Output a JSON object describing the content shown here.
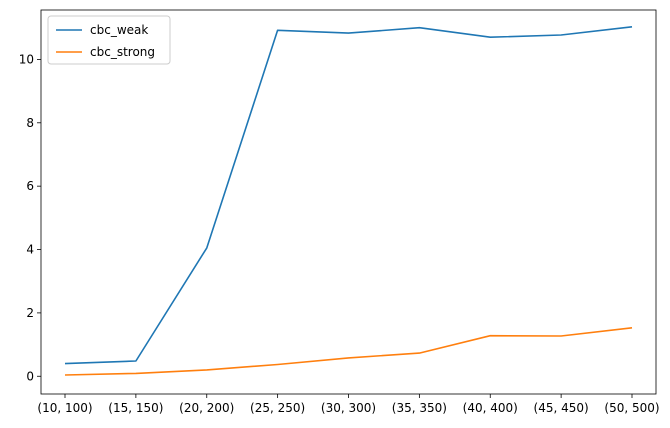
{
  "chart_data": {
    "type": "line",
    "categories": [
      "(10, 100)",
      "(15, 150)",
      "(20, 200)",
      "(25, 250)",
      "(30, 300)",
      "(35, 350)",
      "(40, 400)",
      "(45, 450)",
      "(50, 500)"
    ],
    "series": [
      {
        "name": "cbc_weak",
        "color": "#1f77b4",
        "values": [
          0.4,
          0.48,
          4.05,
          10.92,
          10.83,
          11.0,
          10.7,
          10.77,
          11.03
        ]
      },
      {
        "name": "cbc_strong",
        "color": "#ff7f0e",
        "values": [
          0.04,
          0.09,
          0.2,
          0.37,
          0.58,
          0.73,
          1.28,
          1.27,
          1.53
        ]
      }
    ],
    "yticks": [
      0,
      2,
      4,
      6,
      8,
      10
    ],
    "ylim": [
      -0.56,
      11.56
    ],
    "title": "",
    "xlabel": "",
    "ylabel": "",
    "grid": false,
    "legend": "top-left"
  }
}
